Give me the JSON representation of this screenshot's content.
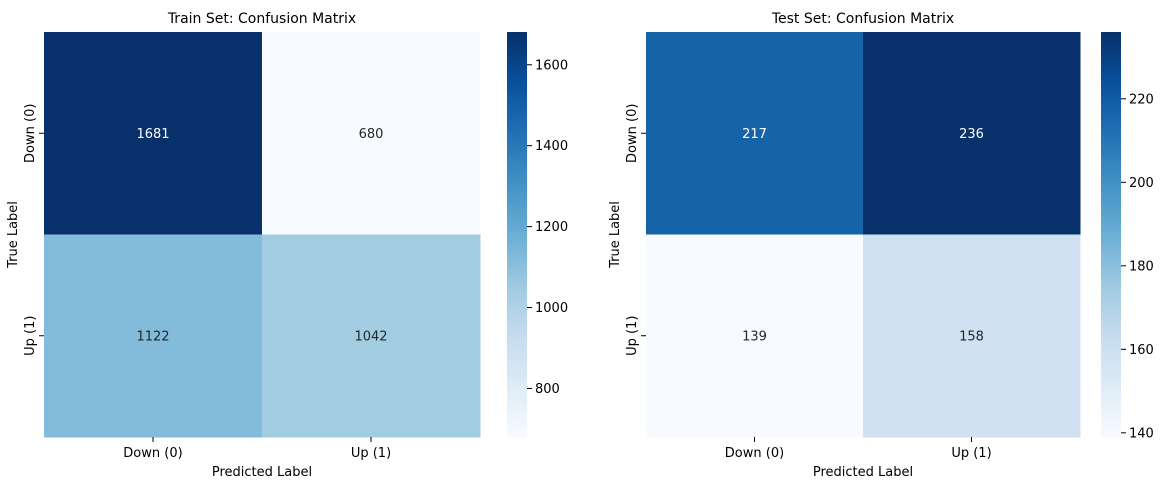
{
  "chart_data": [
    {
      "type": "heatmap",
      "title": "Train Set: Confusion Matrix",
      "xlabel": "Predicted Label",
      "ylabel": "True Label",
      "x_categories": [
        "Down (0)",
        "Up (1)"
      ],
      "y_categories": [
        "Down (0)",
        "Up (1)"
      ],
      "values": [
        [
          1681,
          680
        ],
        [
          1122,
          1042
        ]
      ],
      "colormap": "Blues",
      "colorbar": {
        "range": [
          680,
          1681
        ],
        "ticks": [
          800,
          1000,
          1200,
          1400,
          1600
        ]
      }
    },
    {
      "type": "heatmap",
      "title": "Test Set: Confusion Matrix",
      "xlabel": "Predicted Label",
      "ylabel": "True Label",
      "x_categories": [
        "Down (0)",
        "Up (1)"
      ],
      "y_categories": [
        "Down (0)",
        "Up (1)"
      ],
      "values": [
        [
          217,
          236
        ],
        [
          139,
          158
        ]
      ],
      "colormap": "Blues",
      "colorbar": {
        "range": [
          139,
          236
        ],
        "ticks": [
          140,
          160,
          180,
          200,
          220
        ]
      }
    }
  ]
}
